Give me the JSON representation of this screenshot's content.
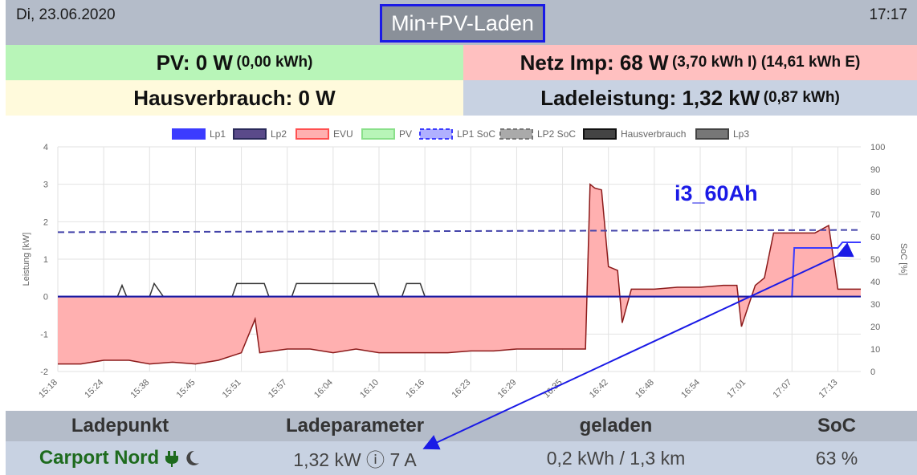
{
  "header": {
    "date": "Di, 23.06.2020",
    "time": "17:17",
    "mode": "Min+PV-Laden"
  },
  "stats": {
    "pv_label": "PV: 0 W",
    "pv_sub": "(0,00 kWh)",
    "netz_label": "Netz Imp: 68 W",
    "netz_sub": "(3,70 kWh I) (14,61 kWh E)",
    "haus_label": "Hausverbrauch: 0 W",
    "lade_label": "Ladeleistung: 1,32 kW",
    "lade_sub": "(0,87 kWh)"
  },
  "colors": {
    "lp1": "#3b3bff",
    "lp2": "#5a4a8a",
    "evu": "#ffb0b0",
    "evu_line": "#ff5050",
    "pv": "#b8f5b8",
    "haus": "#333333",
    "lp3": "#666666"
  },
  "chart_data": {
    "type": "line",
    "legend": [
      "Lp1",
      "Lp2",
      "EVU",
      "PV",
      "LP1 SoC",
      "LP2 SoC",
      "Hausverbrauch",
      "Lp3"
    ],
    "legend_placement": "top",
    "ylabel": "Leistung [kW]",
    "y2label": "SoC [%]",
    "ylim": [
      -2,
      4
    ],
    "y2lim": [
      0,
      100
    ],
    "yticks": [
      "4",
      "3",
      "2",
      "1",
      "0",
      "-1",
      "-2"
    ],
    "y2ticks": [
      "100",
      "90",
      "80",
      "70",
      "60",
      "50",
      "40",
      "30",
      "20",
      "10",
      "0"
    ],
    "xticks": [
      "15:18",
      "15:24",
      "15:38",
      "15:45",
      "15:51",
      "15:57",
      "16:04",
      "16:10",
      "16:16",
      "16:23",
      "16:29",
      "16:35",
      "16:42",
      "16:48",
      "16:54",
      "17:01",
      "17:07",
      "17:13"
    ],
    "grid": true,
    "series": [
      {
        "name": "EVU",
        "x": [
          0,
          0.5,
          1,
          1.45,
          1.5,
          1.55,
          2,
          2.5,
          3,
          3.5,
          4,
          4.3,
          4.4,
          5,
          5.5,
          6,
          6.5,
          7,
          7.5,
          8,
          8.5,
          9,
          9.5,
          10,
          10.5,
          11,
          11.5,
          11.6,
          11.7,
          11.85,
          12,
          12.2,
          12.3,
          12.5,
          13,
          13.5,
          14,
          14.5,
          14.8,
          14.9,
          15.2,
          15.4,
          15.6,
          16,
          16.2,
          16.5,
          16.8,
          17,
          17.5
        ],
        "values": [
          -1.8,
          -1.8,
          -1.7,
          -1.7,
          -1.7,
          -1.7,
          -1.8,
          -1.75,
          -1.8,
          -1.7,
          -1.5,
          -0.6,
          -1.5,
          -1.4,
          -1.4,
          -1.5,
          -1.4,
          -1.5,
          -1.5,
          -1.5,
          -1.5,
          -1.45,
          -1.45,
          -1.4,
          -1.4,
          -1.4,
          -1.4,
          3.0,
          2.9,
          2.85,
          0.8,
          0.7,
          -0.7,
          0.2,
          0.2,
          0.25,
          0.25,
          0.3,
          0.3,
          -0.8,
          0.3,
          0.5,
          1.7,
          1.7,
          1.7,
          1.7,
          1.9,
          0.2,
          0.2
        ]
      },
      {
        "name": "Hausverbrauch",
        "x": [
          0,
          1.3,
          1.4,
          1.5,
          2,
          2.1,
          2.3,
          3.8,
          3.9,
          4.5,
          4.6,
          5.1,
          5.2,
          6.9,
          7.0,
          7.5,
          7.6,
          7.9,
          8.0,
          17.5
        ],
        "values": [
          0,
          0,
          0.3,
          0,
          0,
          0.35,
          0,
          0,
          0.35,
          0.35,
          0,
          0,
          0.35,
          0.35,
          0,
          0,
          0.35,
          0.35,
          0,
          0
        ]
      },
      {
        "name": "Lp1",
        "x": [
          0,
          16.0,
          16.05,
          16.9,
          17.0,
          17.1,
          17.5
        ],
        "values": [
          0,
          0,
          1.3,
          1.3,
          1.3,
          1.45,
          1.45
        ]
      },
      {
        "name": "LP1 SoC",
        "x": [
          0,
          17.5
        ],
        "values": [
          62,
          63
        ]
      }
    ]
  },
  "annotations": {
    "vehicle": "i3_60Ah"
  },
  "table": {
    "headers": [
      "Ladepunkt",
      "Ladeparameter",
      "geladen",
      "SoC"
    ],
    "row": {
      "name": "Carport Nord",
      "params": "1,32 kW ⓘ 7 A",
      "charged": "0,2 kWh / 1,3 km",
      "soc": "63 %"
    }
  }
}
